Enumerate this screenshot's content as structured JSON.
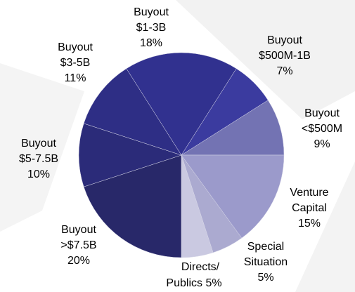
{
  "chart_data": {
    "type": "pie",
    "categories": [
      [
        "Buyout",
        "$1-3B"
      ],
      [
        "Buyout",
        "$500M-1B"
      ],
      [
        "Buyout",
        "<$500M"
      ],
      [
        "Venture",
        "Capital"
      ],
      [
        "Special",
        "Situation"
      ],
      [
        "Directs/",
        "Publics"
      ],
      [
        "Buyout",
        ">$7.5B"
      ],
      [
        "Buyout",
        "$5-7.5B"
      ],
      [
        "Buyout",
        "$3-5B"
      ]
    ],
    "values": [
      18,
      7,
      9,
      15,
      5,
      5,
      20,
      10,
      11
    ],
    "value_labels": [
      "18%",
      "7%",
      "9%",
      "15%",
      "5%",
      "5%",
      "20%",
      "10%",
      "11%"
    ],
    "colors": [
      "#31318f",
      "#3b3b9f",
      "#7373b3",
      "#9b9acb",
      "#abaad0",
      "#cac9e1",
      "#282869",
      "#2b2b79",
      "#2e2e85"
    ]
  }
}
